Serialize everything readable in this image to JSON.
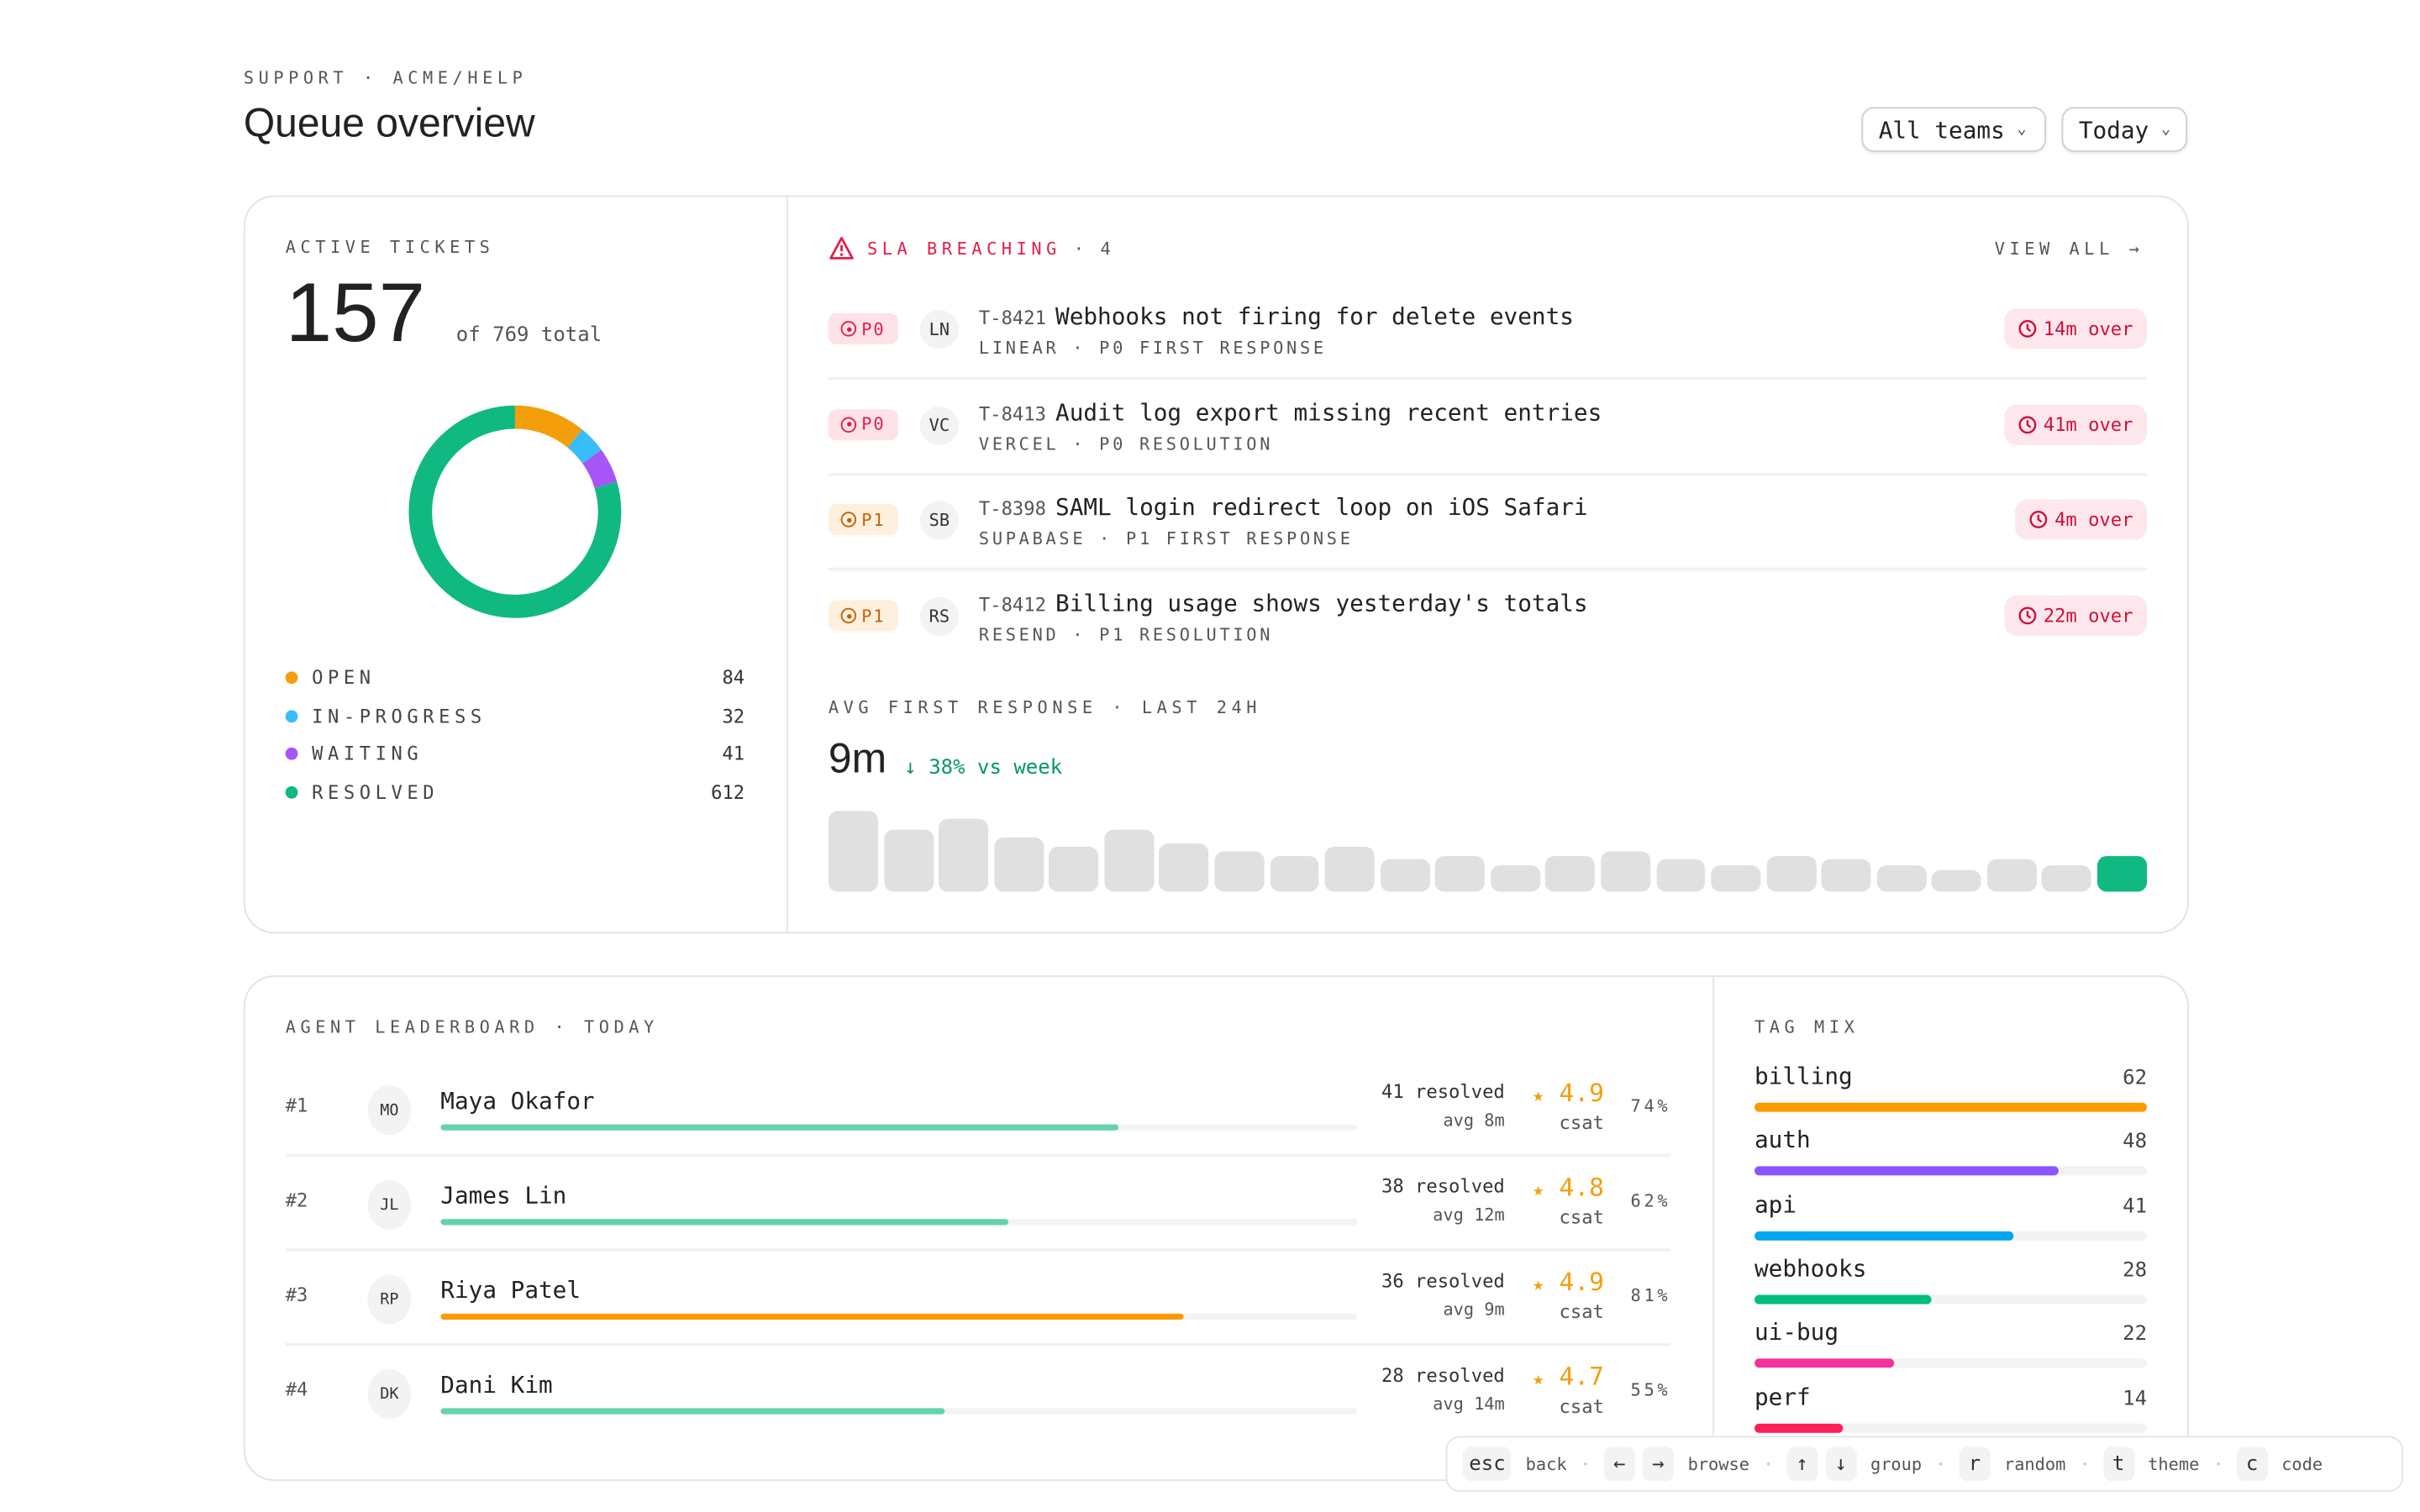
{
  "header": {
    "breadcrumb": "SUPPORT · ACME/HELP",
    "title": "Queue overview",
    "filters": [
      {
        "label": "All teams"
      },
      {
        "label": "Today"
      }
    ]
  },
  "active": {
    "label": "ACTIVE TICKETS",
    "count": "157",
    "total": "of 769 total",
    "chart_data": {
      "type": "pie",
      "title": "ACTIVE TICKETS",
      "categories": [
        "OPEN",
        "IN-PROGRESS",
        "WAITING",
        "RESOLVED"
      ],
      "values": [
        84,
        32,
        41,
        612
      ],
      "colors": [
        "#f59e0b",
        "#38bdf8",
        "#a855f7",
        "#10b981"
      ]
    },
    "legend": [
      {
        "label": "OPEN",
        "value": "84"
      },
      {
        "label": "IN-PROGRESS",
        "value": "32"
      },
      {
        "label": "WAITING",
        "value": "41"
      },
      {
        "label": "RESOLVED",
        "value": "612"
      }
    ]
  },
  "sla": {
    "label": "SLA BREACHING",
    "count": "· 4",
    "view_all": "VIEW ALL →",
    "tickets": [
      {
        "priority": "P0",
        "avatar": "LN",
        "id": "T-8421",
        "title": "Webhooks not firing for delete events",
        "meta": "LINEAR · P0 FIRST RESPONSE",
        "over": "14m over"
      },
      {
        "priority": "P0",
        "avatar": "VC",
        "id": "T-8413",
        "title": "Audit log export missing recent entries",
        "meta": "VERCEL · P0 RESOLUTION",
        "over": "41m over"
      },
      {
        "priority": "P1",
        "avatar": "SB",
        "id": "T-8398",
        "title": "SAML login redirect loop on iOS Safari",
        "meta": "SUPABASE · P1 FIRST RESPONSE",
        "over": "4m over"
      },
      {
        "priority": "P1",
        "avatar": "RS",
        "id": "T-8412",
        "title": "Billing usage shows yesterday's totals",
        "meta": "RESEND · P1 RESOLUTION",
        "over": "22m over"
      }
    ]
  },
  "response": {
    "label": "AVG FIRST RESPONSE · LAST 24H",
    "value": "9m",
    "delta": "↓ 38% vs week",
    "chart_data": {
      "type": "bar",
      "title": "AVG FIRST RESPONSE · LAST 24H",
      "categories": [
        "1",
        "2",
        "3",
        "4",
        "5",
        "6",
        "7",
        "8",
        "9",
        "10",
        "11",
        "12",
        "13",
        "14",
        "15",
        "16",
        "17",
        "18",
        "19",
        "20",
        "21",
        "22",
        "23",
        "24"
      ],
      "values": [
        24,
        18.5,
        21.5,
        16,
        13.5,
        18.5,
        14.5,
        12,
        10.5,
        13.5,
        9.5,
        10.5,
        8,
        10.5,
        12,
        9.5,
        8,
        10.5,
        9.5,
        8,
        6.5,
        9.5,
        8,
        10.5
      ],
      "highlight_last": true,
      "colors": {
        "bar": "#e0e0e0",
        "current": "#10b981"
      }
    }
  },
  "leaderboard": {
    "label": "AGENT LEADERBOARD · TODAY",
    "agents": [
      {
        "rank": "#1",
        "initials": "MO",
        "name": "Maya Okafor",
        "resolved": "41 resolved",
        "avg": "avg 8m",
        "star": "★",
        "csat": "4.9",
        "csat_label": "csat",
        "pct": "74%",
        "progress": 74,
        "color": "#64d3ad"
      },
      {
        "rank": "#2",
        "initials": "JL",
        "name": "James Lin",
        "resolved": "38 resolved",
        "avg": "avg 12m",
        "star": "★",
        "csat": "4.8",
        "csat_label": "csat",
        "pct": "62%",
        "progress": 62,
        "color": "#64d3ad"
      },
      {
        "rank": "#3",
        "initials": "RP",
        "name": "Riya Patel",
        "resolved": "36 resolved",
        "avg": "avg 9m",
        "star": "★",
        "csat": "4.9",
        "csat_label": "csat",
        "pct": "81%",
        "progress": 81,
        "color": "#ff9900"
      },
      {
        "rank": "#4",
        "initials": "DK",
        "name": "Dani Kim",
        "resolved": "28 resolved",
        "avg": "avg 14m",
        "star": "★",
        "csat": "4.7",
        "csat_label": "csat",
        "pct": "55%",
        "progress": 55,
        "color": "#64d3ad"
      }
    ]
  },
  "tags": {
    "label": "TAG MIX",
    "items": [
      {
        "name": "billing",
        "value": "62",
        "color": "#ff9900"
      },
      {
        "name": "auth",
        "value": "48",
        "color": "#8b55ff"
      },
      {
        "name": "api",
        "value": "41",
        "color": "#00a6f0"
      },
      {
        "name": "webhooks",
        "value": "28",
        "color": "#00bd7e"
      },
      {
        "name": "ui-bug",
        "value": "22",
        "color": "#f5329b"
      },
      {
        "name": "perf",
        "value": "14",
        "color": "#ff1f55"
      }
    ]
  },
  "shortcuts": [
    {
      "keys": [
        "esc"
      ],
      "label": "back"
    },
    {
      "keys": [
        "←",
        "→"
      ],
      "label": "browse"
    },
    {
      "keys": [
        "↑",
        "↓"
      ],
      "label": "group"
    },
    {
      "keys": [
        "r"
      ],
      "label": "random"
    },
    {
      "keys": [
        "t"
      ],
      "label": "theme"
    },
    {
      "keys": [
        "c"
      ],
      "label": "code"
    }
  ]
}
